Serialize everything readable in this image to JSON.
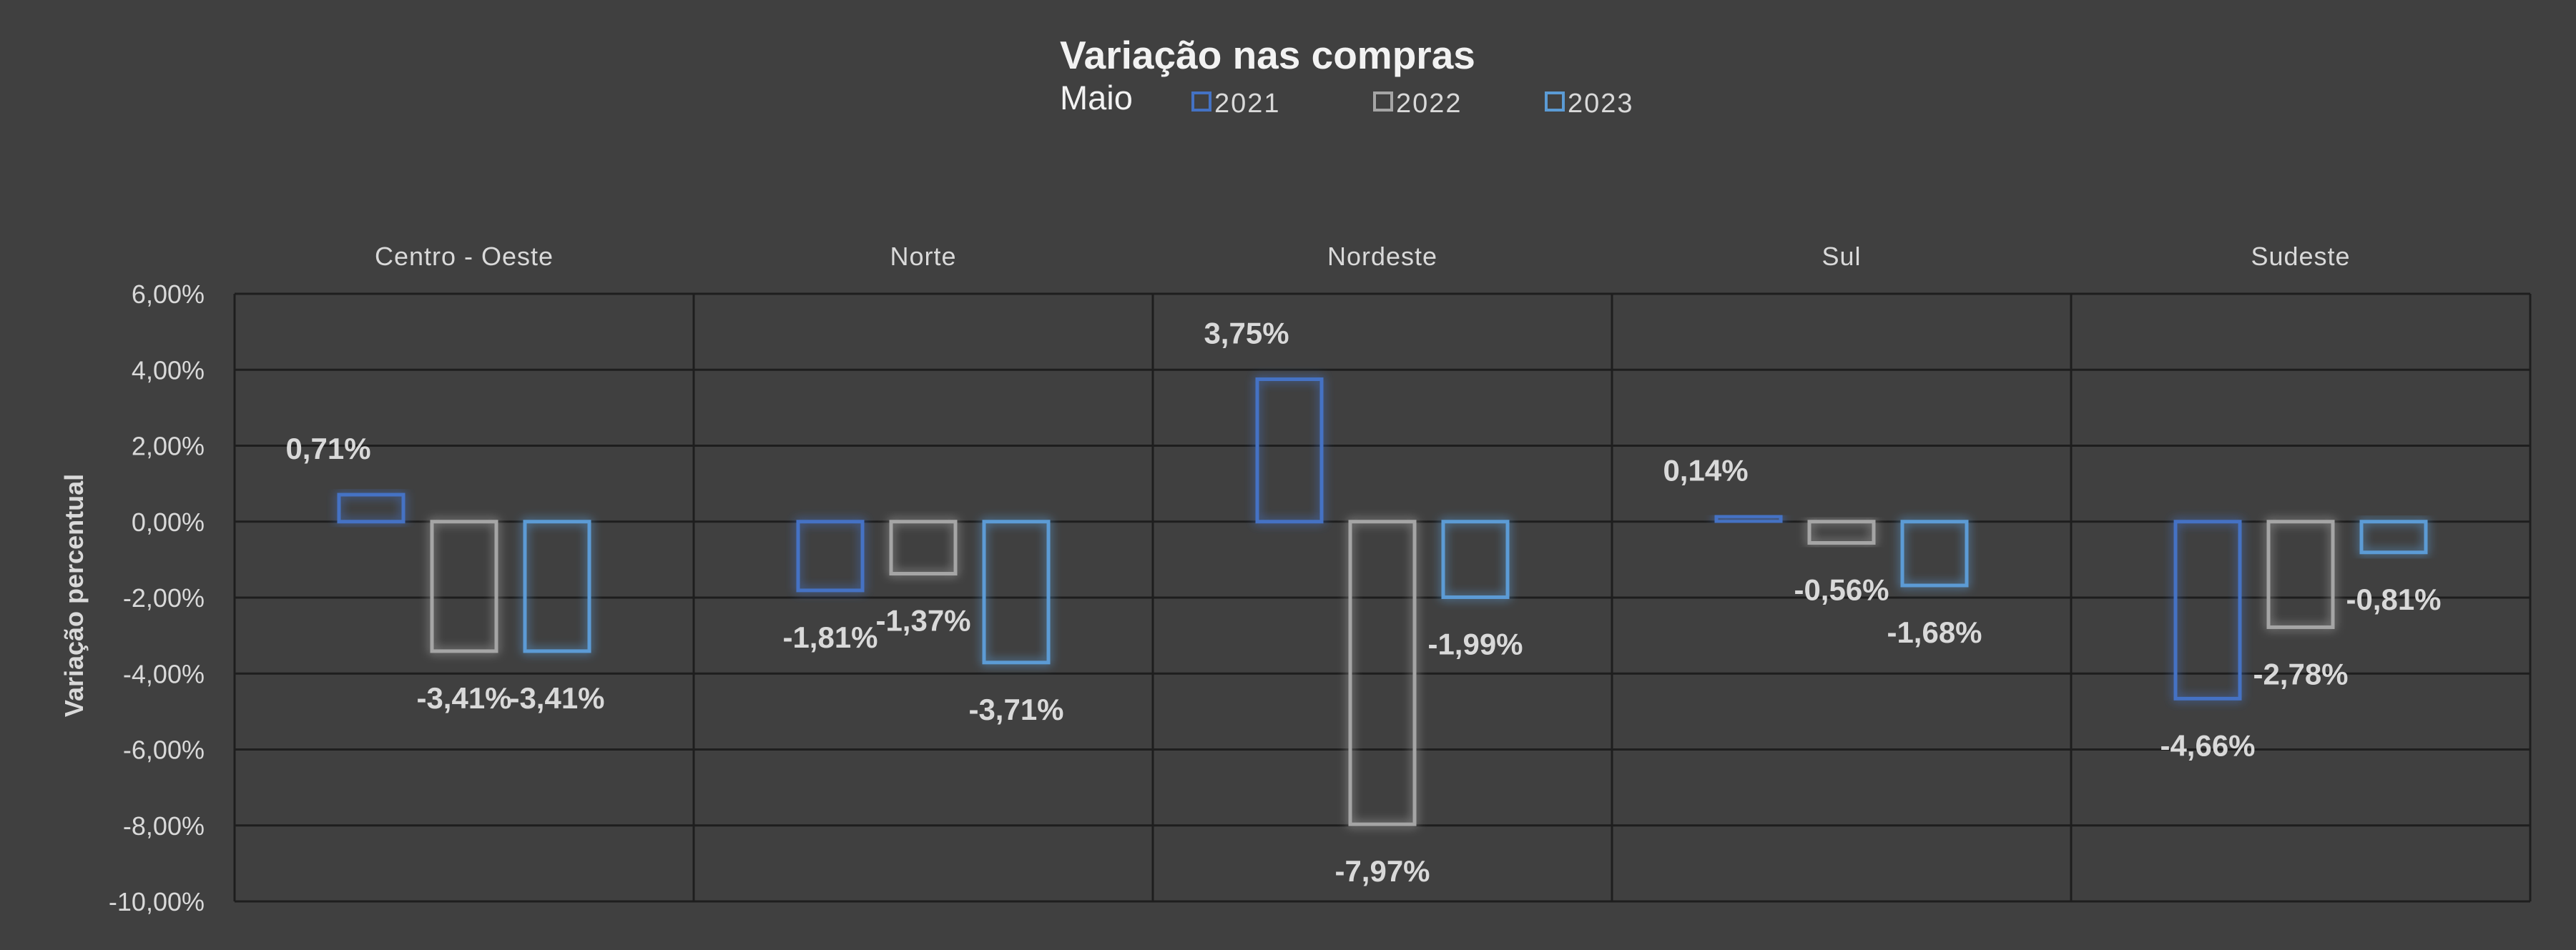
{
  "chart_data": {
    "type": "bar",
    "title": "Variação nas compras",
    "subtitle": "Maio",
    "ylabel": "Variação  percentual",
    "xlabel": "",
    "ylim": [
      -10,
      6
    ],
    "y_ticks": [
      6,
      4,
      2,
      0,
      -2,
      -4,
      -6,
      -8,
      -10
    ],
    "y_tick_labels": [
      "6,00%",
      "4,00%",
      "2,00%",
      "0,00%",
      "-2,00%",
      "-4,00%",
      "-6,00%",
      "-8,00%",
      "-10,00%"
    ],
    "grid": true,
    "legend_position": "top",
    "categories": [
      "Centro - Oeste",
      "Norte",
      "Nordeste",
      "Sul",
      "Sudeste"
    ],
    "series": [
      {
        "name": "2021",
        "color": "#4472C4",
        "values": [
          0.71,
          -1.81,
          3.75,
          0.14,
          -4.66
        ],
        "labels": [
          "0,71%",
          "-1,81%",
          "3,75%",
          "0,14%",
          "-4,66%"
        ]
      },
      {
        "name": "2022",
        "color": "#A5A5A5",
        "values": [
          -3.41,
          -1.37,
          -7.97,
          -0.56,
          -2.78
        ],
        "labels": [
          "-3,41%",
          "-1,37%",
          "-7,97%",
          "-0,56%",
          "-2,78%"
        ]
      },
      {
        "name": "2023",
        "color": "#5B9BD5",
        "values": [
          -3.41,
          -3.71,
          -1.99,
          -1.68,
          -0.81
        ],
        "labels": [
          "-3,41%",
          "-3,71%",
          "-1,99%",
          "-1,68%",
          "-0,81%"
        ]
      }
    ]
  }
}
